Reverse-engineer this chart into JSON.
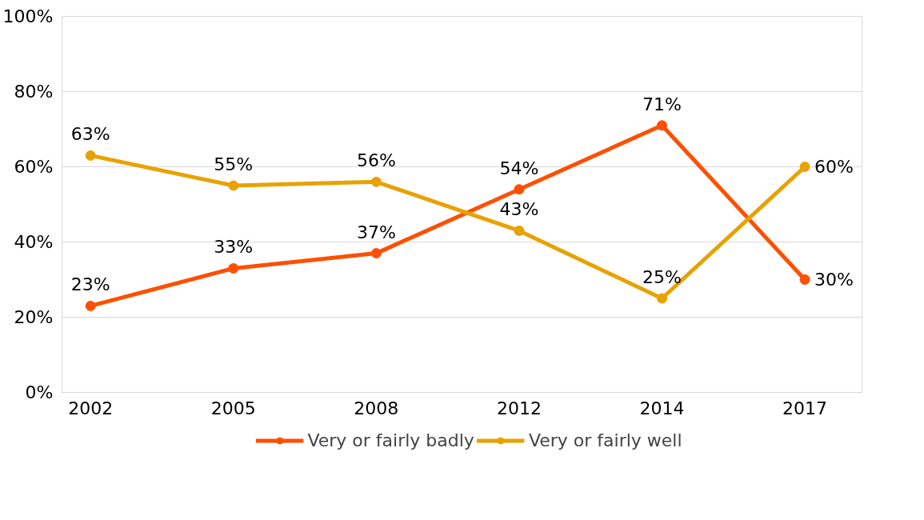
{
  "chart_data": {
    "type": "line",
    "categories": [
      "2002",
      "2005",
      "2008",
      "2012",
      "2014",
      "2017"
    ],
    "series": [
      {
        "name": "Very or fairly badly",
        "color": "#fe5000",
        "values": [
          23,
          33,
          37,
          54,
          71,
          30
        ],
        "value_labels": [
          "23%",
          "33%",
          "37%",
          "54%",
          "71%",
          "30%"
        ]
      },
      {
        "name": "Very or fairly well",
        "color": "#e8a200",
        "values": [
          63,
          55,
          56,
          43,
          25,
          60
        ],
        "value_labels": [
          "63%",
          "55%",
          "56%",
          "43%",
          "25%",
          "60%"
        ]
      }
    ],
    "ylim": [
      0,
      100
    ],
    "yticks": [
      {
        "value": 0,
        "label": "0%"
      },
      {
        "value": 20,
        "label": "20%"
      },
      {
        "value": 40,
        "label": "40%"
      },
      {
        "value": 60,
        "label": "60%"
      },
      {
        "value": 80,
        "label": "80%"
      },
      {
        "value": 100,
        "label": "100%"
      }
    ],
    "grid": "y",
    "legend": "bottom",
    "marker": "circle",
    "line_style": "solid"
  }
}
